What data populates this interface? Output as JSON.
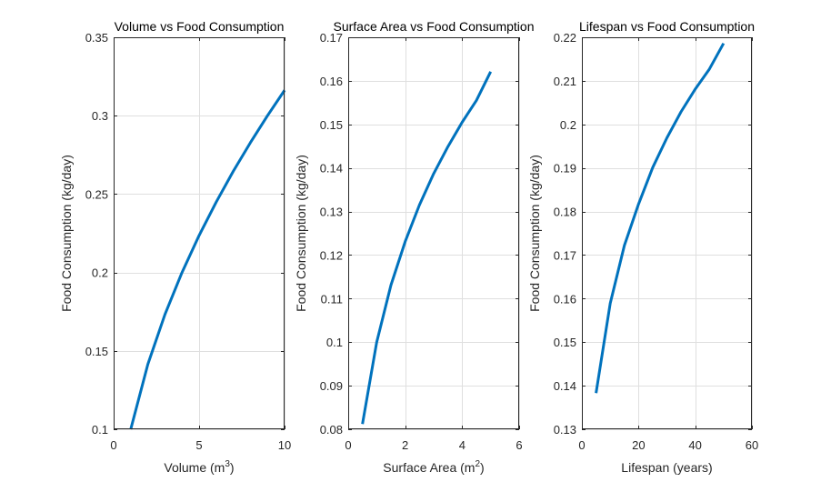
{
  "figure": {
    "background": "#ffffff",
    "line_color": "#0072BD"
  },
  "chart_data": [
    {
      "type": "line",
      "title": "Volume vs Food Consumption",
      "xlabel": "Volume (m",
      "xlabel_sup": "3",
      "xlabel_end": ")",
      "ylabel": "Food Consumption (kg/day)",
      "xlim": [
        0,
        10
      ],
      "ylim": [
        0.1,
        0.35
      ],
      "xticks": [
        0,
        5,
        10
      ],
      "xtick_labels": [
        "0",
        "5",
        "10"
      ],
      "yticks": [
        0.1,
        0.15,
        0.2,
        0.25,
        0.3,
        0.35
      ],
      "ytick_labels": [
        "0.1",
        "0.15",
        "0.2",
        "0.25",
        "0.3",
        "0.35"
      ],
      "grid": true,
      "series": [
        {
          "x": [
            1,
            2,
            3,
            4,
            5,
            6,
            7,
            8,
            9,
            10
          ],
          "y": [
            0.1,
            0.1414,
            0.1732,
            0.2,
            0.2236,
            0.2449,
            0.2646,
            0.2828,
            0.3,
            0.3162
          ]
        }
      ]
    },
    {
      "type": "line",
      "title": "Surface Area vs Food Consumption",
      "xlabel": "Surface Area (m",
      "xlabel_sup": "2",
      "xlabel_end": ")",
      "ylabel": "Food Consumption (kg/day)",
      "xlim": [
        0,
        6
      ],
      "ylim": [
        0.08,
        0.17
      ],
      "xticks": [
        0,
        2,
        4,
        6
      ],
      "xtick_labels": [
        "0",
        "2",
        "4",
        "6"
      ],
      "yticks": [
        0.08,
        0.09,
        0.1,
        0.11,
        0.12,
        0.13,
        0.14,
        0.15,
        0.16,
        0.17
      ],
      "ytick_labels": [
        "0.08",
        "0.09",
        "0.1",
        "0.11",
        "0.12",
        "0.13",
        "0.14",
        "0.15",
        "0.16",
        "0.17"
      ],
      "grid": true,
      "series": [
        {
          "x": [
            0.5,
            1,
            1.5,
            2,
            2.5,
            3,
            3.5,
            4,
            4.5,
            5
          ],
          "y": [
            0.0812,
            0.1,
            0.1131,
            0.1231,
            0.1315,
            0.1387,
            0.1449,
            0.1505,
            0.1555,
            0.1621
          ]
        }
      ]
    },
    {
      "type": "line",
      "title": "Lifespan vs Food Consumption",
      "xlabel": "Lifespan (years)",
      "xlabel_sup": "",
      "xlabel_end": "",
      "ylabel": "Food Consumption (kg/day)",
      "xlim": [
        0,
        60
      ],
      "ylim": [
        0.13,
        0.22
      ],
      "xticks": [
        0,
        20,
        40,
        60
      ],
      "xtick_labels": [
        "0",
        "20",
        "40",
        "60"
      ],
      "yticks": [
        0.13,
        0.14,
        0.15,
        0.16,
        0.17,
        0.18,
        0.19,
        0.2,
        0.21,
        0.22
      ],
      "ytick_labels": [
        "0.13",
        "0.14",
        "0.15",
        "0.16",
        "0.17",
        "0.18",
        "0.19",
        "0.2",
        "0.21",
        "0.22"
      ],
      "grid": true,
      "series": [
        {
          "x": [
            5,
            10,
            15,
            20,
            25,
            30,
            35,
            40,
            45,
            50
          ],
          "y": [
            0.1383,
            0.1589,
            0.1722,
            0.1817,
            0.1901,
            0.1969,
            0.2029,
            0.2081,
            0.2127,
            0.2186
          ]
        }
      ]
    }
  ]
}
